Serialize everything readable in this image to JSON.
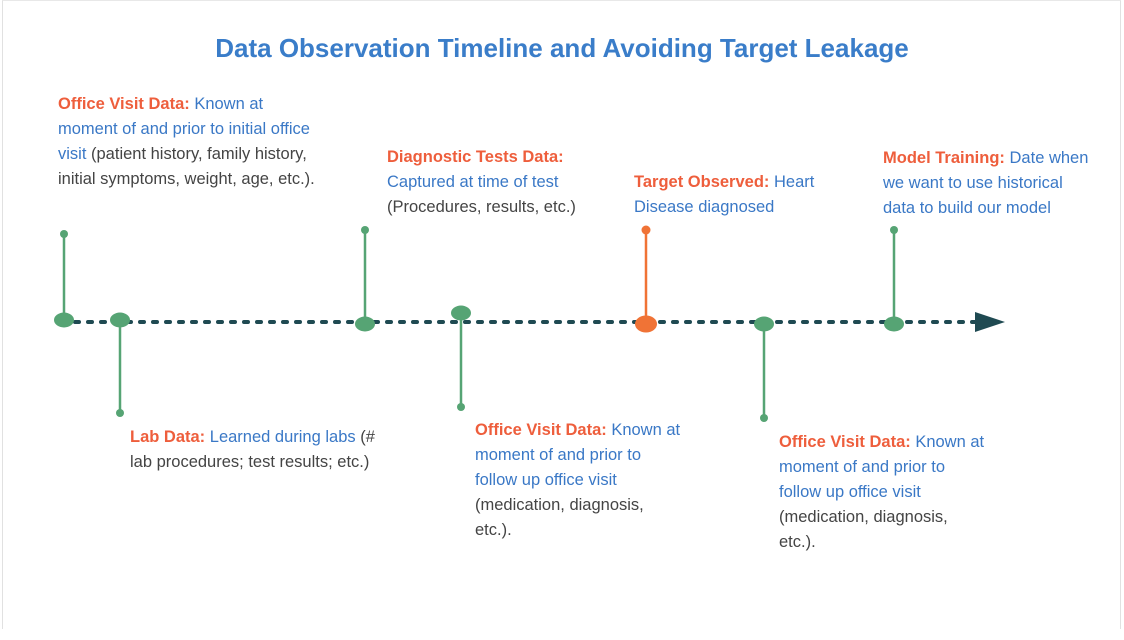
{
  "title": "Data Observation Timeline and Avoiding Target Leakage",
  "colors": {
    "title": "#3a7dc9",
    "heading": "#ee5e3c",
    "body_blue": "#3a78c6",
    "body_grey": "#444444",
    "stem_green": "#56a474",
    "node_orange": "#f07336",
    "axis_dots": "#1f4a52",
    "arrow": "#1f4a52"
  },
  "events": [
    {
      "id": "office-visit-initial",
      "heading": "Office Visit Data:",
      "line1": "Known at",
      "line2": "moment of and prior to initial office",
      "line3a": "visit",
      "line3b": " (patient history, family history,",
      "line4": "initial symptoms, weight, age, etc.).",
      "color": "green",
      "direction": "up"
    },
    {
      "id": "lab-data",
      "heading": "Lab Data:",
      "line1": "Learned during labs",
      "line1b": " (#",
      "line2": "lab procedures; test results; etc.)",
      "color": "green",
      "direction": "down"
    },
    {
      "id": "diagnostic-tests",
      "heading": "Diagnostic Tests Data:",
      "line1": "Captured at time of test",
      "line2": "(Procedures, results, etc.)",
      "color": "green",
      "direction": "up"
    },
    {
      "id": "office-visit-followup-1",
      "heading": "Office Visit Data:",
      "line1": "Known at",
      "line2": "moment of and prior to",
      "line3": "follow up office visit",
      "line4": "(medication, diagnosis,",
      "line5": "etc.).",
      "color": "green",
      "direction": "down"
    },
    {
      "id": "target-observed",
      "heading": "Target Observed:",
      "line1": "Heart",
      "line2": "Disease diagnosed",
      "color": "orange",
      "direction": "up"
    },
    {
      "id": "office-visit-followup-2",
      "heading": "Office Visit Data:",
      "line1": "Known at",
      "line2": "moment of and prior to",
      "line3": "follow up office visit",
      "line4": "(medication, diagnosis,",
      "line5": "etc.).",
      "color": "green",
      "direction": "down"
    },
    {
      "id": "model-training",
      "heading": "Model Training:",
      "line1": "Date when",
      "line2": "we want to use historical",
      "line3": "data to build our model",
      "color": "green",
      "direction": "up"
    }
  ]
}
